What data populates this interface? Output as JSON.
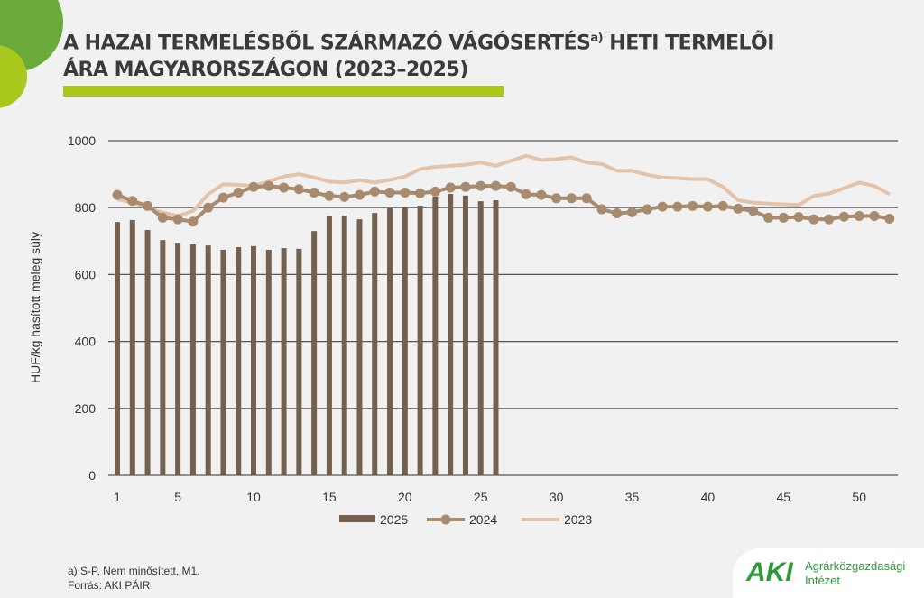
{
  "title": {
    "line1": "A HAZAI TERMELÉSBŐL SZÁRMAZÓ VÁGÓSERTÉS",
    "sup": "a)",
    "line1b": " HETI TERMELŐI",
    "line2": "ÁRA MAGYARORSZÁGON (2023–2025)"
  },
  "footnote": {
    "note": "a) S-P, Nem minősített, M1.",
    "source": "Forrás: AKI PÁIR"
  },
  "logo": {
    "mark": "AKI",
    "name1": "Agrárközgazdasági",
    "name2": "Intézet"
  },
  "chart_data": {
    "type": "bar+line",
    "ylabel": "HUF/kg hasított meleg súly",
    "ylim": [
      0,
      1000
    ],
    "yticks": [
      "0",
      "200",
      "400",
      "600",
      "800",
      "1000"
    ],
    "xticks": [
      "1",
      "5",
      "10",
      "15",
      "20",
      "25",
      "30",
      "35",
      "40",
      "45",
      "50"
    ],
    "xtick_values": [
      1,
      5,
      10,
      15,
      20,
      25,
      30,
      35,
      40,
      45,
      50
    ],
    "x_range": [
      1,
      52
    ],
    "grid": true,
    "legend_position": "bottom",
    "series": [
      {
        "name": "2025",
        "type": "bar",
        "color": "#73604f",
        "values": [
          757,
          763,
          733,
          703,
          695,
          690,
          687,
          674,
          682,
          685,
          674,
          679,
          677,
          730,
          774,
          776,
          765,
          784,
          798,
          800,
          806,
          833,
          841,
          836,
          819,
          822
        ]
      },
      {
        "name": "2024",
        "type": "line-marker",
        "color": "#a88a6e",
        "values": [
          838,
          820,
          805,
          770,
          765,
          758,
          800,
          830,
          845,
          862,
          865,
          860,
          855,
          845,
          835,
          832,
          838,
          848,
          845,
          845,
          843,
          848,
          860,
          862,
          865,
          865,
          862,
          840,
          838,
          828,
          828,
          828,
          795,
          783,
          786,
          795,
          803,
          803,
          805,
          803,
          805,
          797,
          790,
          770,
          770,
          772,
          765,
          765,
          773,
          775,
          775,
          767
        ]
      },
      {
        "name": "2023",
        "type": "line",
        "color": "#e3c4ab",
        "values": [
          825,
          815,
          800,
          785,
          775,
          790,
          840,
          870,
          868,
          865,
          878,
          893,
          900,
          890,
          878,
          875,
          882,
          875,
          883,
          893,
          915,
          922,
          925,
          928,
          935,
          925,
          940,
          955,
          942,
          945,
          950,
          935,
          930,
          910,
          910,
          898,
          890,
          888,
          885,
          885,
          862,
          822,
          815,
          812,
          810,
          808,
          835,
          842,
          858,
          875,
          865,
          840
        ]
      }
    ]
  }
}
